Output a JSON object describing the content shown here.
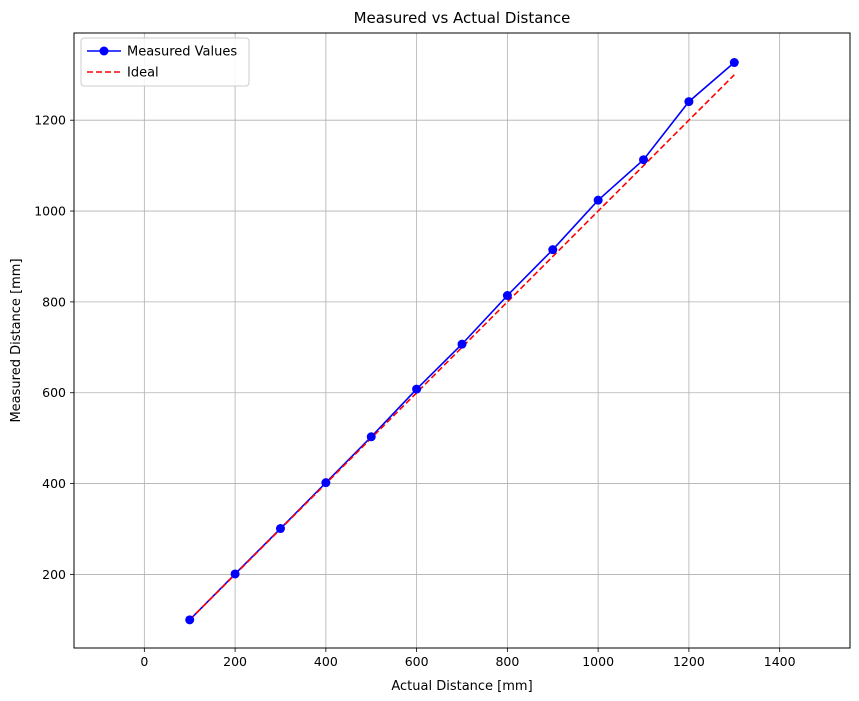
{
  "chart_data": {
    "type": "line",
    "title": "Measured vs Actual Distance",
    "xlabel": "Actual Distance [mm]",
    "ylabel": "Measured Distance [mm]",
    "xlim": [
      -155,
      1555
    ],
    "ylim": [
      38,
      1392
    ],
    "xticks": [
      0,
      200,
      400,
      600,
      800,
      1000,
      1200,
      1400
    ],
    "yticks": [
      200,
      400,
      600,
      800,
      1000,
      1200
    ],
    "grid": true,
    "legend_position": "top-left",
    "series": [
      {
        "name": "Measured Values",
        "style": "solid-with-markers",
        "color": "#0000ff",
        "x": [
          100,
          200,
          300,
          400,
          500,
          600,
          700,
          800,
          900,
          1000,
          1100,
          1200,
          1300
        ],
        "y": [
          100,
          201,
          301,
          402,
          503,
          608,
          707,
          814,
          915,
          1024,
          1113,
          1241,
          1327
        ]
      },
      {
        "name": "Ideal",
        "style": "dashed",
        "color": "#ff0000",
        "x": [
          100,
          1300
        ],
        "y": [
          100,
          1300
        ]
      }
    ]
  }
}
